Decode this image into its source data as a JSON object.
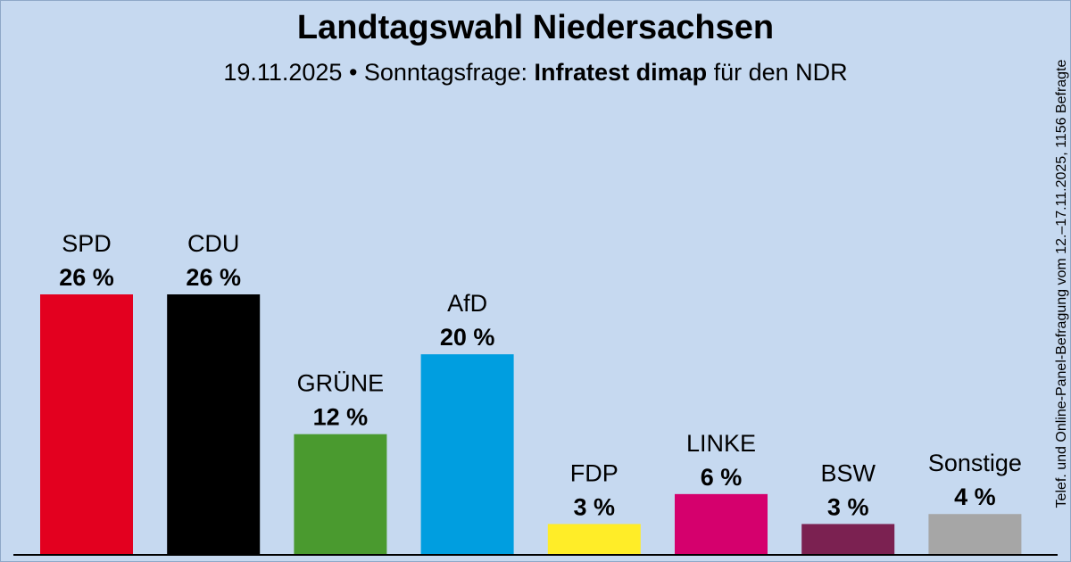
{
  "header": {
    "title": "Landtagswahl Niedersachsen",
    "subtitle_prefix": "19.11.2025 • Sonntagsfrage:",
    "institute": "Infratest dimap",
    "subtitle_suffix": "für den NDR"
  },
  "side_note": "Telef. und Online-Panel-Befragung vom 12.–17.11.2025, 1156 Befragte",
  "chart_data": {
    "type": "bar",
    "title": "Landtagswahl Niedersachsen",
    "categories": [
      "SPD",
      "CDU",
      "GRÜNE",
      "AfD",
      "FDP",
      "LINKE",
      "BSW",
      "Sonstige"
    ],
    "values": [
      26,
      26,
      12,
      20,
      3,
      6,
      3,
      4
    ],
    "value_labels": [
      "26 %",
      "26 %",
      "12 %",
      "20 %",
      "3 %",
      "6 %",
      "3 %",
      "4 %"
    ],
    "colors": [
      "#e3001f",
      "#000000",
      "#4a9a2f",
      "#009ee0",
      "#ffed28",
      "#d5006d",
      "#7b2151",
      "#a6a6a6"
    ],
    "ylim": [
      0,
      26
    ],
    "grid": false,
    "legend": "none"
  }
}
